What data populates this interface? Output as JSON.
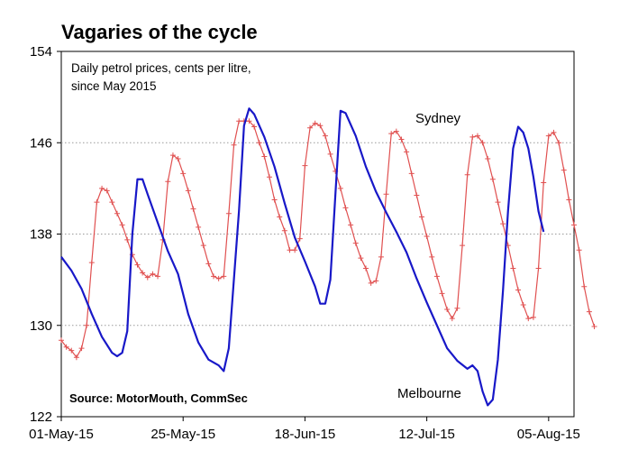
{
  "chart_data": {
    "type": "line",
    "title": "Vagaries of the cycle",
    "subtitle_lines": [
      "Daily petrol prices, cents per litre,",
      "since May 2015"
    ],
    "source": "Source: MotorMouth, CommSec",
    "xlabel": "",
    "ylabel": "",
    "ylim": [
      122,
      154
    ],
    "yticks": [
      "154",
      "146",
      "138",
      "130",
      "122"
    ],
    "xlim": [
      "2015-05-01",
      "2015-08-10"
    ],
    "xticks": [
      {
        "date": "2015-05-01",
        "label": "01-May-15"
      },
      {
        "date": "2015-05-25",
        "label": "25-May-15"
      },
      {
        "date": "2015-06-18",
        "label": "18-Jun-15"
      },
      {
        "date": "2015-07-12",
        "label": "12-Jul-15"
      },
      {
        "date": "2015-08-05",
        "label": "05-Aug-15"
      }
    ],
    "grid": "horizontal-dotted",
    "series": [
      {
        "name": "Sydney",
        "color": "#e05050",
        "marker": "plus",
        "points": [
          [
            "2015-05-01",
            128.7
          ],
          [
            "2015-05-02",
            128.1
          ],
          [
            "2015-05-03",
            127.8
          ],
          [
            "2015-05-04",
            127.2
          ],
          [
            "2015-05-05",
            128.0
          ],
          [
            "2015-05-06",
            130.0
          ],
          [
            "2015-05-07",
            135.5
          ],
          [
            "2015-05-08",
            140.8
          ],
          [
            "2015-05-09",
            142.0
          ],
          [
            "2015-05-10",
            141.8
          ],
          [
            "2015-05-11",
            140.8
          ],
          [
            "2015-05-12",
            139.8
          ],
          [
            "2015-05-13",
            138.8
          ],
          [
            "2015-05-14",
            137.5
          ],
          [
            "2015-05-15",
            136.2
          ],
          [
            "2015-05-16",
            135.3
          ],
          [
            "2015-05-17",
            134.6
          ],
          [
            "2015-05-18",
            134.2
          ],
          [
            "2015-05-19",
            134.5
          ],
          [
            "2015-05-20",
            134.3
          ],
          [
            "2015-05-21",
            137.5
          ],
          [
            "2015-05-22",
            142.6
          ],
          [
            "2015-05-23",
            144.9
          ],
          [
            "2015-05-24",
            144.6
          ],
          [
            "2015-05-25",
            143.3
          ],
          [
            "2015-05-26",
            141.8
          ],
          [
            "2015-05-27",
            140.2
          ],
          [
            "2015-05-28",
            138.6
          ],
          [
            "2015-05-29",
            137.0
          ],
          [
            "2015-05-30",
            135.4
          ],
          [
            "2015-05-31",
            134.3
          ],
          [
            "2015-06-01",
            134.1
          ],
          [
            "2015-06-02",
            134.3
          ],
          [
            "2015-06-03",
            139.8
          ],
          [
            "2015-06-04",
            145.8
          ],
          [
            "2015-06-05",
            147.9
          ],
          [
            "2015-06-06",
            147.9
          ],
          [
            "2015-06-07",
            147.9
          ],
          [
            "2015-06-08",
            147.4
          ],
          [
            "2015-06-09",
            146.0
          ],
          [
            "2015-06-10",
            144.8
          ],
          [
            "2015-06-11",
            143.0
          ],
          [
            "2015-06-12",
            141.0
          ],
          [
            "2015-06-13",
            139.5
          ],
          [
            "2015-06-14",
            138.3
          ],
          [
            "2015-06-15",
            136.6
          ],
          [
            "2015-06-16",
            136.6
          ],
          [
            "2015-06-17",
            137.6
          ],
          [
            "2015-06-18",
            144.0
          ],
          [
            "2015-06-19",
            147.3
          ],
          [
            "2015-06-20",
            147.7
          ],
          [
            "2015-06-21",
            147.5
          ],
          [
            "2015-06-22",
            146.6
          ],
          [
            "2015-06-23",
            145.0
          ],
          [
            "2015-06-24",
            143.5
          ],
          [
            "2015-06-25",
            142.0
          ],
          [
            "2015-06-26",
            140.3
          ],
          [
            "2015-06-27",
            138.8
          ],
          [
            "2015-06-28",
            137.2
          ],
          [
            "2015-06-29",
            135.9
          ],
          [
            "2015-06-30",
            135.0
          ],
          [
            "2015-07-01",
            133.7
          ],
          [
            "2015-07-02",
            133.9
          ],
          [
            "2015-07-03",
            136.0
          ],
          [
            "2015-07-04",
            141.5
          ],
          [
            "2015-07-05",
            146.8
          ],
          [
            "2015-07-06",
            147.0
          ],
          [
            "2015-07-07",
            146.3
          ],
          [
            "2015-07-08",
            145.2
          ],
          [
            "2015-07-09",
            143.3
          ],
          [
            "2015-07-10",
            141.4
          ],
          [
            "2015-07-11",
            139.5
          ],
          [
            "2015-07-12",
            137.8
          ],
          [
            "2015-07-13",
            136.0
          ],
          [
            "2015-07-14",
            134.3
          ],
          [
            "2015-07-15",
            132.8
          ],
          [
            "2015-07-16",
            131.4
          ],
          [
            "2015-07-17",
            130.6
          ],
          [
            "2015-07-18",
            131.5
          ],
          [
            "2015-07-19",
            137.0
          ],
          [
            "2015-07-20",
            143.2
          ],
          [
            "2015-07-21",
            146.5
          ],
          [
            "2015-07-22",
            146.6
          ],
          [
            "2015-07-23",
            146.0
          ],
          [
            "2015-07-24",
            144.6
          ],
          [
            "2015-07-25",
            142.8
          ],
          [
            "2015-07-26",
            140.8
          ],
          [
            "2015-07-27",
            138.9
          ],
          [
            "2015-07-28",
            137.0
          ],
          [
            "2015-07-29",
            135.0
          ],
          [
            "2015-07-30",
            133.1
          ],
          [
            "2015-07-31",
            131.8
          ],
          [
            "2015-08-01",
            130.6
          ],
          [
            "2015-08-02",
            130.7
          ],
          [
            "2015-08-03",
            135.0
          ],
          [
            "2015-08-04",
            142.5
          ],
          [
            "2015-08-05",
            146.6
          ],
          [
            "2015-08-06",
            146.9
          ],
          [
            "2015-08-07",
            146.0
          ],
          [
            "2015-08-08",
            143.6
          ],
          [
            "2015-08-09",
            141.0
          ],
          [
            "2015-08-10",
            138.8
          ],
          [
            "2015-08-11",
            136.6
          ],
          [
            "2015-08-12",
            133.4
          ],
          [
            "2015-08-13",
            131.2
          ],
          [
            "2015-08-14",
            129.9
          ]
        ]
      },
      {
        "name": "Melbourne",
        "color": "#1818c8",
        "marker": "none",
        "points": [
          [
            "2015-05-01",
            136.0
          ],
          [
            "2015-05-03",
            134.8
          ],
          [
            "2015-05-05",
            133.2
          ],
          [
            "2015-05-07",
            131.0
          ],
          [
            "2015-05-09",
            129.0
          ],
          [
            "2015-05-11",
            127.6
          ],
          [
            "2015-05-12",
            127.3
          ],
          [
            "2015-05-13",
            127.6
          ],
          [
            "2015-05-14",
            129.5
          ],
          [
            "2015-05-15",
            138.0
          ],
          [
            "2015-05-16",
            142.8
          ],
          [
            "2015-05-17",
            142.8
          ],
          [
            "2015-05-18",
            141.5
          ],
          [
            "2015-05-20",
            139.0
          ],
          [
            "2015-05-22",
            136.5
          ],
          [
            "2015-05-24",
            134.5
          ],
          [
            "2015-05-26",
            131.0
          ],
          [
            "2015-05-28",
            128.5
          ],
          [
            "2015-05-30",
            127.0
          ],
          [
            "2015-06-01",
            126.5
          ],
          [
            "2015-06-02",
            126.0
          ],
          [
            "2015-06-03",
            128.0
          ],
          [
            "2015-06-04",
            134.0
          ],
          [
            "2015-06-05",
            140.0
          ],
          [
            "2015-06-06",
            147.5
          ],
          [
            "2015-06-07",
            149.0
          ],
          [
            "2015-06-08",
            148.5
          ],
          [
            "2015-06-10",
            146.5
          ],
          [
            "2015-06-12",
            143.9
          ],
          [
            "2015-06-14",
            140.7
          ],
          [
            "2015-06-16",
            137.7
          ],
          [
            "2015-06-18",
            135.6
          ],
          [
            "2015-06-20",
            133.4
          ],
          [
            "2015-06-21",
            131.9
          ],
          [
            "2015-06-22",
            131.9
          ],
          [
            "2015-06-23",
            134.0
          ],
          [
            "2015-06-24",
            141.5
          ],
          [
            "2015-06-25",
            148.8
          ],
          [
            "2015-06-26",
            148.6
          ],
          [
            "2015-06-28",
            146.6
          ],
          [
            "2015-06-30",
            143.9
          ],
          [
            "2015-07-02",
            141.7
          ],
          [
            "2015-07-04",
            139.9
          ],
          [
            "2015-07-06",
            138.2
          ],
          [
            "2015-07-08",
            136.4
          ],
          [
            "2015-07-10",
            134.1
          ],
          [
            "2015-07-12",
            132.0
          ],
          [
            "2015-07-14",
            130.0
          ],
          [
            "2015-07-16",
            128.0
          ],
          [
            "2015-07-18",
            126.9
          ],
          [
            "2015-07-20",
            126.2
          ],
          [
            "2015-07-21",
            126.5
          ],
          [
            "2015-07-22",
            126.0
          ],
          [
            "2015-07-23",
            124.2
          ],
          [
            "2015-07-24",
            123.0
          ],
          [
            "2015-07-25",
            123.5
          ],
          [
            "2015-07-26",
            127.0
          ],
          [
            "2015-07-27",
            133.0
          ],
          [
            "2015-07-28",
            140.0
          ],
          [
            "2015-07-29",
            145.5
          ],
          [
            "2015-07-30",
            147.4
          ],
          [
            "2015-07-31",
            146.9
          ],
          [
            "2015-08-01",
            145.5
          ],
          [
            "2015-08-02",
            143.0
          ],
          [
            "2015-08-03",
            140.0
          ],
          [
            "2015-08-04",
            138.2
          ]
        ]
      }
    ]
  }
}
